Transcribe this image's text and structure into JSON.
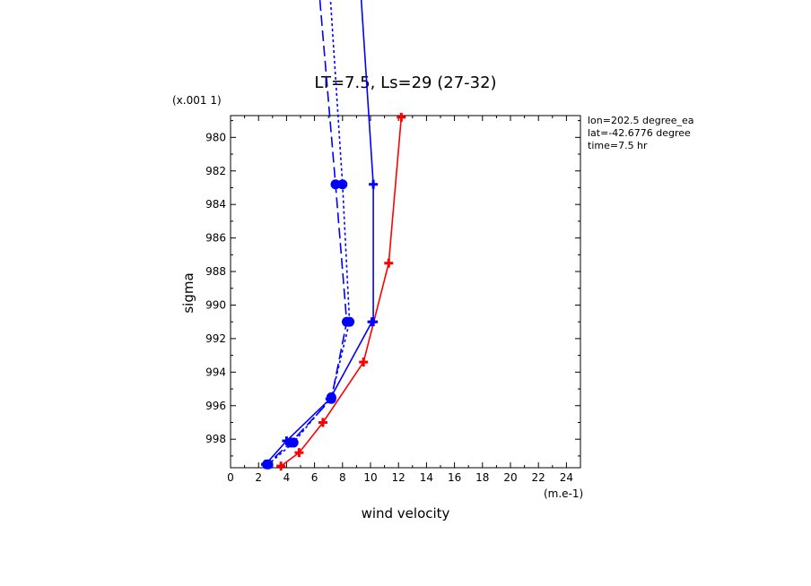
{
  "chart_data": {
    "type": "line",
    "title": "LT=7.5, Ls=29 (27-32)",
    "xlabel": "wind velocity",
    "ylabel": "sigma",
    "x_unit": "(m.e-1)",
    "y_multiplier": "(x.001 1)",
    "xlim": [
      0,
      25
    ],
    "ylim": [
      999.7,
      978.7
    ],
    "x_ticks": [
      0,
      2,
      4,
      6,
      8,
      10,
      12,
      14,
      16,
      18,
      20,
      22,
      24
    ],
    "y_ticks": [
      980,
      982,
      984,
      986,
      988,
      990,
      992,
      994,
      996,
      998
    ],
    "info": [
      "lon=202.5 degree_ea",
      "lat=-42.6776 degree",
      "time=7.5 hr"
    ],
    "series": [
      {
        "color": "#ff0000",
        "dash": "solid",
        "marker": "plus",
        "x": [
          12.2,
          11.3,
          9.5,
          6.6,
          4.9,
          3.6
        ],
        "y": [
          978.8,
          987.5,
          993.4,
          997.0,
          998.8,
          999.6
        ]
      },
      {
        "color": "#0000ff",
        "dash": "solid",
        "marker": "plus",
        "x": [
          9.2,
          10.2,
          10.2,
          10.1,
          7.1,
          4.0,
          2.5
        ],
        "y": [
          970.0,
          982.8,
          991.0,
          991.0,
          995.6,
          998.1,
          999.5
        ]
      },
      {
        "color": "#0000ff",
        "dash": "dash",
        "marker": "circle",
        "x": [
          6.2,
          7.5,
          8.3,
          7.2,
          4.3,
          2.6
        ],
        "y": [
          970.0,
          982.8,
          991.0,
          995.6,
          998.2,
          999.5
        ]
      },
      {
        "color": "#0000ff",
        "dash": "dot",
        "marker": "circle",
        "x": [
          7.0,
          8.0,
          8.5,
          7.2,
          4.5,
          2.7
        ],
        "y": [
          970.0,
          982.8,
          991.0,
          995.5,
          998.2,
          999.5
        ]
      }
    ]
  }
}
